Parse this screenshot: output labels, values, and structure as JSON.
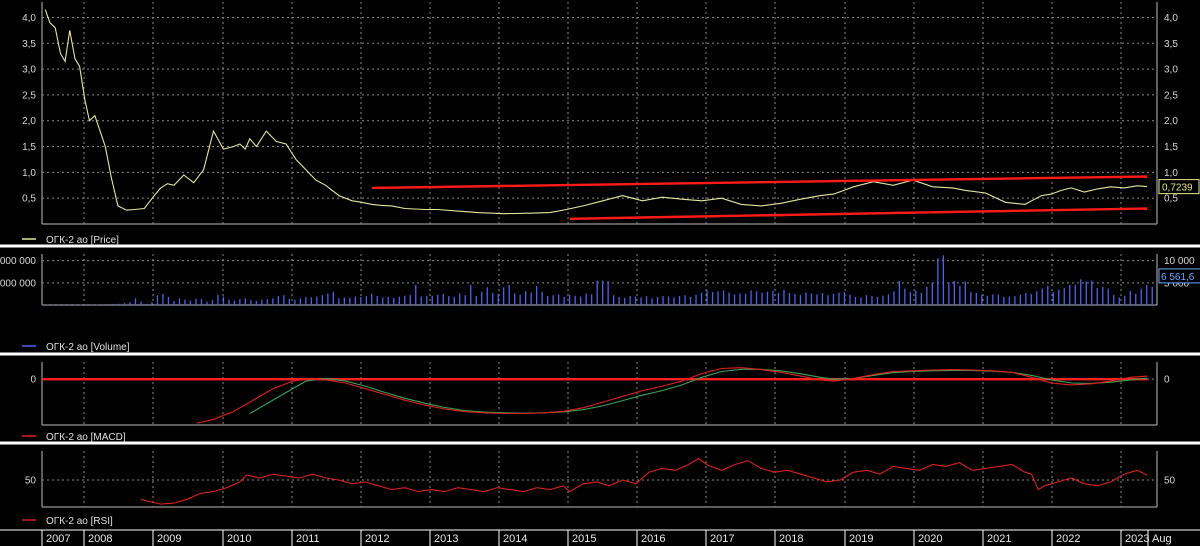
{
  "colors": {
    "background": "#000000",
    "grid": "#8a8a8a",
    "separator": "#ffffff",
    "price": "#e6e6a0",
    "volume": "#4d63e6",
    "macd": "#e0201e",
    "signal": "#3aa05a",
    "rsi": "#d8231e",
    "channel": "#ff1a1a",
    "zero_line": "#ff2020",
    "badge_price": "#e8e890",
    "badge_volume": "#6aa8ff"
  },
  "years": [
    "2007",
    "2008",
    "2009",
    "2010",
    "2011",
    "2012",
    "2013",
    "2014",
    "2015",
    "2016",
    "2017",
    "2018",
    "2019",
    "2020",
    "2021",
    "2022",
    "2023",
    "Aug"
  ],
  "chart_data": [
    {
      "type": "line",
      "legend": "ОГК-2 ао [Price]",
      "ylim": [
        0,
        4.3
      ],
      "y_ticks": [
        "4,0",
        "3,5",
        "3,0",
        "2,5",
        "2,0",
        "1,5",
        "1,0",
        "0,5"
      ],
      "y_tick_values": [
        4.0,
        3.5,
        3.0,
        2.5,
        2.0,
        1.5,
        1.0,
        0.5
      ],
      "last_value_label": "0,7239",
      "last_value": 0.7239,
      "series": [
        {
          "x": [
            2007.05,
            2007.12,
            2007.2,
            2007.28,
            2007.35,
            2007.42,
            2007.5,
            2007.57,
            2007.65,
            2007.72,
            2007.8,
            2007.88,
            2007.96,
            2008.05,
            2008.15,
            2008.28,
            2008.4,
            2008.55,
            2008.7,
            2008.8,
            2008.9,
            2009.0,
            2009.15,
            2009.3,
            2009.45,
            2009.6,
            2009.75,
            2009.9,
            2010.0,
            2010.08,
            2010.15,
            2010.25,
            2010.4,
            2010.55,
            2010.7,
            2010.85,
            2011.0,
            2011.15,
            2011.3,
            2011.5,
            2011.7,
            2011.85,
            2012.0,
            2012.15,
            2012.3,
            2012.5,
            2012.8,
            2013.0,
            2013.3,
            2013.6,
            2014.0,
            2014.4,
            2014.7,
            2014.95,
            2015.2,
            2015.5,
            2015.8,
            2016.1,
            2016.4,
            2016.7,
            2017.0,
            2017.3,
            2017.6,
            2017.9,
            2018.2,
            2018.5,
            2018.8,
            2019.0,
            2019.3,
            2019.6,
            2019.9,
            2020.2,
            2020.5,
            2020.8,
            2021.0,
            2021.3,
            2021.6,
            2021.9,
            2022.0,
            2022.15,
            2022.3,
            2022.45,
            2022.6,
            2022.8,
            2023.0,
            2023.2,
            2023.4,
            2023.6,
            2023.75
          ],
          "y": [
            4.15,
            3.9,
            3.8,
            3.3,
            3.15,
            3.75,
            3.2,
            3.05,
            2.4,
            2.0,
            2.1,
            1.8,
            1.5,
            0.9,
            0.35,
            0.27,
            0.28,
            0.3,
            0.55,
            0.7,
            0.78,
            0.75,
            0.95,
            0.8,
            1.05,
            1.8,
            1.45,
            1.5,
            1.55,
            1.45,
            1.65,
            1.5,
            1.8,
            1.6,
            1.55,
            1.25,
            1.05,
            0.85,
            0.75,
            0.55,
            0.45,
            0.42,
            0.38,
            0.36,
            0.35,
            0.3,
            0.28,
            0.28,
            0.25,
            0.22,
            0.2,
            0.21,
            0.22,
            0.28,
            0.35,
            0.45,
            0.55,
            0.45,
            0.52,
            0.48,
            0.45,
            0.5,
            0.38,
            0.35,
            0.4,
            0.48,
            0.55,
            0.58,
            0.72,
            0.82,
            0.75,
            0.85,
            0.72,
            0.7,
            0.65,
            0.6,
            0.42,
            0.38,
            0.45,
            0.55,
            0.58,
            0.65,
            0.7,
            0.62,
            0.68,
            0.72,
            0.7,
            0.74,
            0.7239
          ]
        },
        {
          "name": "",
          "x": [
            2012.0,
            2023.75
          ],
          "y": [
            0.7,
            0.92
          ]
        },
        {
          "name": "",
          "x": [
            2015.0,
            2023.75
          ],
          "y": [
            0.1,
            0.3
          ]
        }
      ]
    },
    {
      "type": "bar",
      "legend": "ОГК-2 ао [Volume]",
      "ylim": [
        0,
        11500
      ],
      "y_ticks_left": [
        "000 000",
        "000 000"
      ],
      "y_ticks_right": [
        "10 000",
        "5 000"
      ],
      "y_tick_values": [
        10000,
        5000
      ],
      "last_value_label": "6 561,6",
      "last_value": 6561.6,
      "x_start": 2007.0,
      "x_step": 0.0833,
      "values": [
        50,
        60,
        70,
        80,
        50,
        60,
        80,
        90,
        60,
        100,
        120,
        150,
        200,
        250,
        300,
        400,
        600,
        1500,
        800,
        300,
        600,
        2200,
        2500,
        1800,
        900,
        1500,
        1200,
        1000,
        1400,
        1300,
        800,
        1100,
        2300,
        1900,
        1200,
        1000,
        1300,
        1500,
        1100,
        900,
        1200,
        1300,
        1500,
        2000,
        2200,
        1400,
        1200,
        1500,
        1800,
        1700,
        1900,
        2200,
        2600,
        3000,
        1500,
        1700,
        1600,
        1900,
        1800,
        2000,
        2500,
        2000,
        1700,
        1800,
        1600,
        1900,
        2100,
        2300,
        4500,
        1900,
        2000,
        2100,
        2300,
        2500,
        2000,
        1800,
        2600,
        2200,
        4500,
        2000,
        3000,
        4000,
        2700,
        2500,
        4000,
        4500,
        2600,
        2300,
        3100,
        2800,
        4300,
        3000,
        2000,
        2200,
        2400,
        1800,
        2300,
        2100,
        1900,
        2600,
        2400,
        5500,
        5500,
        5400,
        2200,
        1800,
        1600,
        2000,
        1900,
        1700,
        2000,
        1500,
        1800,
        2000,
        1900,
        1700,
        2000,
        2200,
        1800,
        2300,
        2800,
        3300,
        2900,
        3100,
        3300,
        2800,
        2400,
        2600,
        2500,
        3300,
        3100,
        2800,
        3000,
        3200,
        2700,
        3400,
        2700,
        2500,
        2300,
        2800,
        2600,
        2400,
        2700,
        2200,
        2500,
        2800,
        2900,
        2300,
        1800,
        1700,
        2200,
        2000,
        1800,
        2100,
        2400,
        3100,
        5400,
        3700,
        2900,
        3300,
        2700,
        4100,
        5100,
        10500,
        11200,
        5100,
        5400,
        4300,
        5300,
        2900,
        2700,
        2300,
        2100,
        2400,
        2300,
        1800,
        1900,
        2000,
        2300,
        2700,
        2500,
        3100,
        3700,
        4300,
        2900,
        3500,
        3800,
        4500,
        4500,
        5800,
        5300,
        5500,
        3800,
        4100,
        3700,
        2300,
        1700,
        2100,
        3200,
        2500,
        3700,
        4500,
        4100,
        6100,
        4400,
        8600,
        5700,
        6600,
        6561.6
      ]
    },
    {
      "type": "line",
      "legend": "ОГК-2 ао [MACD]",
      "ylim": [
        -1.2,
        0.45
      ],
      "y_ticks": [
        "0"
      ],
      "y_tick_values": [
        0
      ],
      "series": [
        {
          "x": [
            2009.35,
            2009.6,
            2009.9,
            2010.2,
            2010.5,
            2010.8,
            2011.0,
            2011.3,
            2011.6,
            2011.9,
            2012.2,
            2012.5,
            2012.8,
            2013.1,
            2013.4,
            2013.7,
            2014.0,
            2014.3,
            2014.6,
            2014.9,
            2015.2,
            2015.5,
            2015.8,
            2016.1,
            2016.4,
            2016.7,
            2017.0,
            2017.3,
            2017.6,
            2017.9,
            2018.2,
            2018.5,
            2018.8,
            2019.0,
            2019.3,
            2019.6,
            2019.9,
            2020.2,
            2020.5,
            2020.8,
            2021.1,
            2021.4,
            2021.7,
            2022.0,
            2022.3,
            2022.6,
            2022.9,
            2023.2,
            2023.5,
            2023.75
          ],
          "y": [
            -1.15,
            -1.05,
            -0.85,
            -0.55,
            -0.25,
            -0.05,
            0.0,
            -0.02,
            -0.1,
            -0.25,
            -0.4,
            -0.55,
            -0.68,
            -0.78,
            -0.85,
            -0.88,
            -0.9,
            -0.9,
            -0.88,
            -0.84,
            -0.75,
            -0.6,
            -0.45,
            -0.3,
            -0.18,
            -0.05,
            0.15,
            0.28,
            0.3,
            0.25,
            0.18,
            0.08,
            -0.02,
            -0.05,
            0.02,
            0.12,
            0.2,
            0.22,
            0.24,
            0.25,
            0.24,
            0.22,
            0.18,
            0.05,
            -0.1,
            -0.15,
            -0.12,
            -0.05,
            0.05,
            0.08
          ]
        },
        {
          "x": [
            2010.15,
            2010.4,
            2010.7,
            2011.0,
            2011.3,
            2011.6,
            2011.9,
            2012.2,
            2012.5,
            2012.8,
            2013.1,
            2013.4,
            2013.7,
            2014.0,
            2014.3,
            2014.6,
            2014.9,
            2015.2,
            2015.5,
            2015.8,
            2016.1,
            2016.4,
            2016.7,
            2017.0,
            2017.3,
            2017.6,
            2017.9,
            2018.2,
            2018.5,
            2018.8,
            2019.0,
            2019.3,
            2019.6,
            2019.9,
            2020.2,
            2020.5,
            2020.8,
            2021.1,
            2021.4,
            2021.7,
            2022.0,
            2022.3,
            2022.6,
            2022.9,
            2023.2,
            2023.5,
            2023.75
          ],
          "y": [
            -0.9,
            -0.65,
            -0.35,
            -0.05,
            0.02,
            -0.05,
            -0.18,
            -0.35,
            -0.5,
            -0.63,
            -0.74,
            -0.82,
            -0.86,
            -0.88,
            -0.89,
            -0.88,
            -0.86,
            -0.8,
            -0.7,
            -0.56,
            -0.42,
            -0.3,
            -0.15,
            0.05,
            0.2,
            0.26,
            0.26,
            0.22,
            0.14,
            0.05,
            0.0,
            0.02,
            0.1,
            0.17,
            0.2,
            0.22,
            0.23,
            0.23,
            0.21,
            0.18,
            0.1,
            -0.02,
            -0.1,
            -0.11,
            -0.08,
            -0.02,
            0.03
          ]
        },
        {
          "name": "",
          "x": [
            2007.0,
            2023.75
          ],
          "y": [
            0,
            0
          ]
        }
      ]
    },
    {
      "type": "line",
      "legend": "ОГК-2 ао [RSI]",
      "ylim": [
        22,
        80
      ],
      "y_ticks": [
        "50"
      ],
      "y_tick_values": [
        50
      ],
      "series": [
        {
          "x": [
            2008.5,
            2008.6,
            2008.8,
            2009.0,
            2009.2,
            2009.4,
            2009.6,
            2009.8,
            2010.0,
            2010.1,
            2010.3,
            2010.5,
            2010.7,
            2010.9,
            2011.1,
            2011.3,
            2011.5,
            2011.7,
            2011.9,
            2012.1,
            2012.3,
            2012.5,
            2012.7,
            2012.9,
            2013.1,
            2013.3,
            2013.5,
            2013.7,
            2013.9,
            2014.1,
            2014.3,
            2014.5,
            2014.7,
            2014.9,
            2015.0,
            2015.2,
            2015.4,
            2015.6,
            2015.8,
            2016.0,
            2016.2,
            2016.4,
            2016.6,
            2016.8,
            2016.95,
            2017.1,
            2017.3,
            2017.5,
            2017.7,
            2017.9,
            2018.1,
            2018.3,
            2018.5,
            2018.7,
            2018.9,
            2019.1,
            2019.3,
            2019.5,
            2019.7,
            2019.9,
            2020.1,
            2020.3,
            2020.5,
            2020.7,
            2020.9,
            2021.1,
            2021.3,
            2021.5,
            2021.7,
            2021.9,
            2022.0,
            2022.1,
            2022.2,
            2022.4,
            2022.6,
            2022.8,
            2023.0,
            2023.2,
            2023.4,
            2023.6,
            2023.75
          ],
          "y": [
            30,
            28,
            25,
            26,
            30,
            36,
            38,
            42,
            48,
            55,
            52,
            56,
            54,
            52,
            56,
            52,
            50,
            46,
            48,
            44,
            40,
            42,
            38,
            40,
            38,
            42,
            40,
            38,
            42,
            40,
            38,
            42,
            40,
            44,
            38,
            46,
            48,
            44,
            50,
            46,
            58,
            62,
            60,
            66,
            72,
            65,
            60,
            66,
            70,
            62,
            58,
            60,
            56,
            52,
            48,
            50,
            58,
            60,
            56,
            64,
            62,
            60,
            66,
            64,
            68,
            60,
            62,
            64,
            66,
            58,
            56,
            40,
            44,
            48,
            52,
            46,
            44,
            48,
            56,
            60,
            55
          ]
        }
      ]
    }
  ]
}
